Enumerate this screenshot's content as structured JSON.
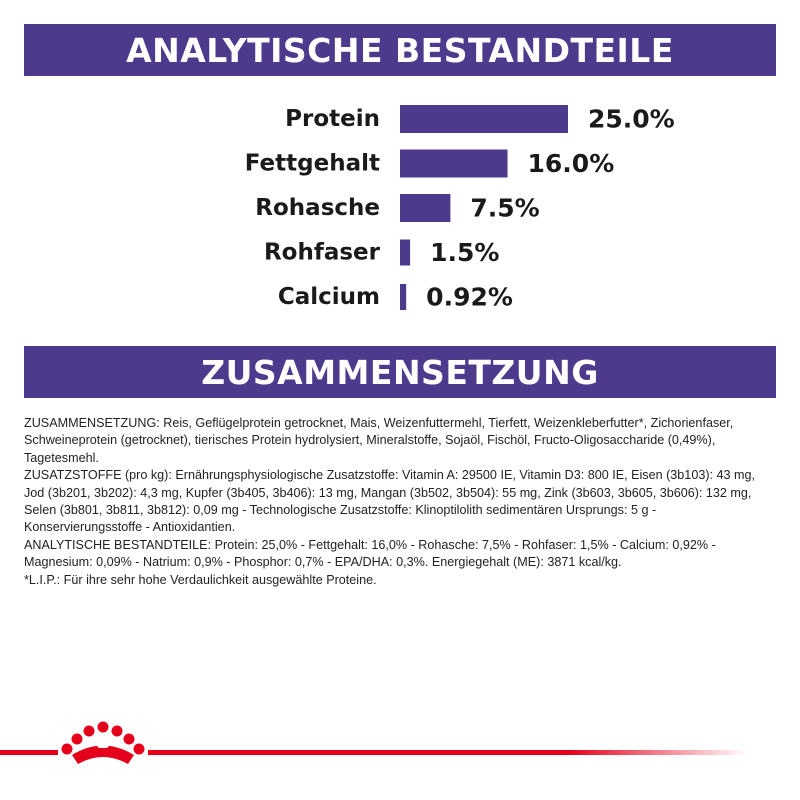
{
  "headers": {
    "analysis": "ANALYTISCHE BESTANDTEILE",
    "composition": "ZUSAMMENSETZUNG"
  },
  "colors": {
    "accent": "#4e3a8c",
    "brand_red": "#e4001b"
  },
  "chart_data": {
    "type": "bar",
    "orientation": "horizontal",
    "categories": [
      "Protein",
      "Fettgehalt",
      "Rohasche",
      "Rohfaser",
      "Calcium"
    ],
    "values": [
      25.0,
      16.0,
      7.5,
      1.5,
      0.92
    ],
    "value_labels": [
      "25.0%",
      "16.0%",
      "7.5%",
      "1.5%",
      "0.92%"
    ],
    "title": "ANALYTISCHE BESTANDTEILE",
    "xlabel": "",
    "ylabel": "",
    "xlim": [
      0,
      25
    ],
    "grid": false,
    "legend": "none"
  },
  "composition": {
    "paragraphs": [
      "ZUSAMMENSETZUNG: Reis, Geflügelprotein getrocknet, Mais, Weizenfuttermehl, Tierfett, Weizenkleberfutter*, Zichorienfaser, Schweineprotein (getrocknet), tierisches Protein hydrolysiert, Mineralstoffe, Sojaöl, Fischöl, Fructo-Oligosaccharide (0,49%), Tagetesmehl.",
      "ZUSATZSTOFFE (pro kg): Ernährungsphysiologische Zusatzstoffe: Vitamin A: 29500 IE, Vitamin D3: 800 IE, Eisen (3b103): 43 mg, Jod (3b201, 3b202): 4,3 mg, Kupfer (3b405, 3b406): 13 mg, Mangan (3b502, 3b504): 55 mg, Zink (3b603, 3b605, 3b606): 132 mg, Selen (3b801, 3b811, 3b812): 0,09 mg - Technologische Zusatzstoffe: Klinoptilolith sedimentären Ursprungs: 5 g - Konservierungsstoffe - Antioxidantien.",
      "ANALYTISCHE BESTANDTEILE: Protein: 25,0% - Fettgehalt: 16,0% - Rohasche: 7,5% - Rohfaser: 1,5% - Calcium: 0,92% - Magnesium: 0,09% - Natrium: 0,9% - Phosphor: 0,7% - EPA/DHA: 0,3%. Energiegehalt (ME): 3871 kcal/kg.",
      "*L.I.P.: Für ihre sehr hohe Verdaulichkeit ausgewählte Proteine."
    ]
  },
  "footer": {
    "logo_icon": "crown-icon"
  }
}
